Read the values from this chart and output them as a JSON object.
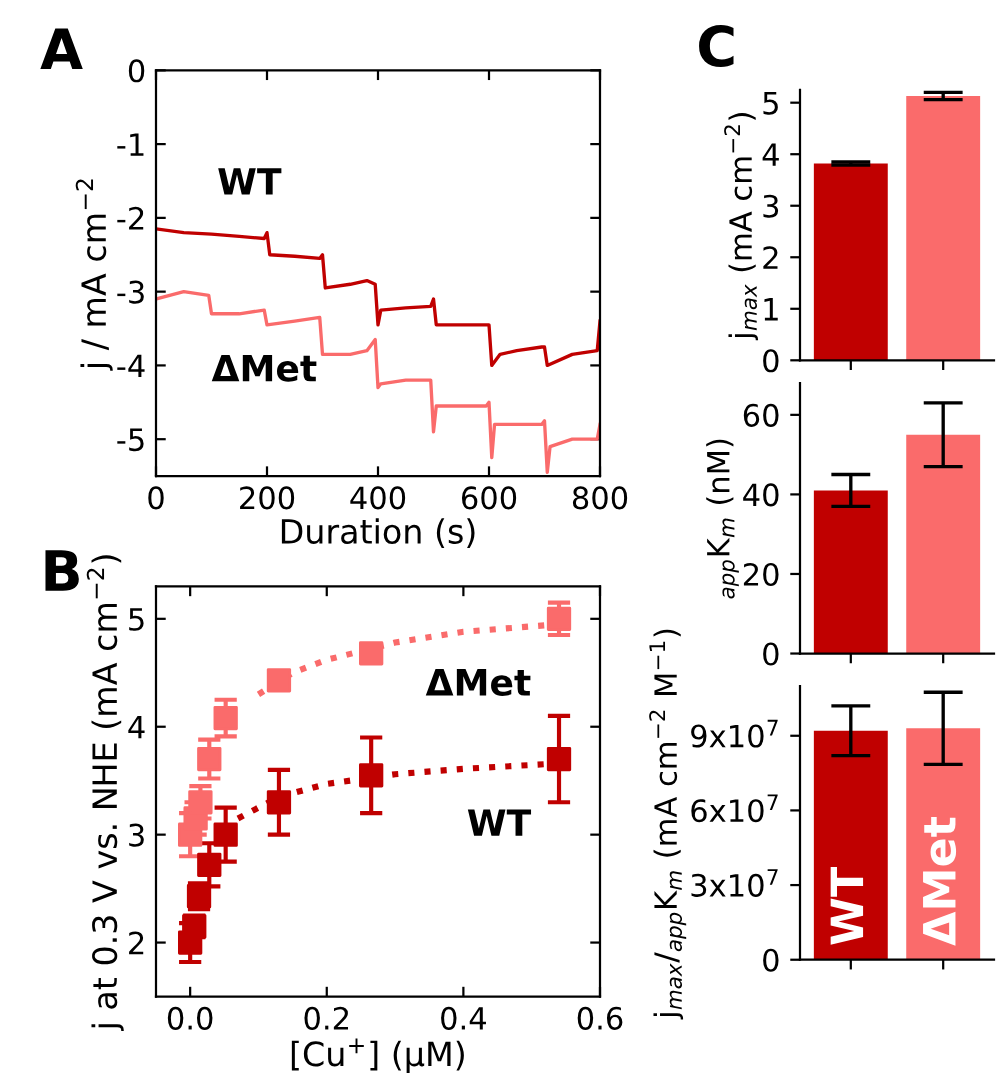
{
  "chart_data": [
    {
      "type": "line",
      "xlabel": "Duration (s)",
      "ylabel": "j / mA cm$^{−2}$",
      "annotations": [
        "A"
      ],
      "xlim": [
        0,
        800
      ],
      "ylim": [
        -5.5,
        0
      ],
      "xticks": [
        0,
        200,
        400,
        600,
        800
      ],
      "yticks": [
        0,
        -1,
        -2,
        -3,
        -4,
        -5
      ],
      "line_style": "solid",
      "series": [
        {
          "name": "WT",
          "color": "#c00000",
          "x": [
            0,
            50,
            100,
            150,
            195,
            200,
            205,
            250,
            295,
            300,
            305,
            350,
            380,
            395,
            400,
            405,
            450,
            495,
            500,
            505,
            550,
            600,
            605,
            620,
            650,
            695,
            700,
            705,
            750,
            795,
            800
          ],
          "values": [
            -2.15,
            -2.2,
            -2.22,
            -2.25,
            -2.28,
            -2.2,
            -2.5,
            -2.52,
            -2.55,
            -2.5,
            -2.95,
            -2.9,
            -2.85,
            -2.9,
            -3.45,
            -3.25,
            -3.22,
            -3.2,
            -3.1,
            -3.45,
            -3.45,
            -3.45,
            -4.0,
            -3.85,
            -3.8,
            -3.75,
            -3.75,
            -4.0,
            -3.85,
            -3.8,
            -3.4
          ]
        },
        {
          "name": "ΔMet",
          "color": "#fa6b6b",
          "x": [
            0,
            50,
            95,
            100,
            150,
            195,
            200,
            250,
            295,
            300,
            350,
            380,
            395,
            400,
            405,
            450,
            495,
            500,
            505,
            550,
            595,
            600,
            605,
            610,
            650,
            695,
            700,
            705,
            710,
            750,
            795,
            800
          ],
          "values": [
            -3.1,
            -3.0,
            -3.05,
            -3.3,
            -3.3,
            -3.25,
            -3.45,
            -3.4,
            -3.35,
            -3.85,
            -3.85,
            -3.8,
            -3.65,
            -4.3,
            -4.25,
            -4.2,
            -4.2,
            -4.9,
            -4.55,
            -4.55,
            -4.55,
            -4.5,
            -5.25,
            -4.8,
            -4.8,
            -4.8,
            -4.75,
            -5.45,
            -5.1,
            -5.0,
            -5.0,
            -4.8
          ]
        }
      ]
    },
    {
      "type": "scatter",
      "xlabel": "[Cu$^{+}$] (μM)",
      "ylabel": "j at 0.3 V vs. NHE (mA cm$^{−2}$)",
      "annotations": [
        "B"
      ],
      "xlim": [
        -0.05,
        0.6
      ],
      "ylim": [
        1.5,
        5.3
      ],
      "xticks": [
        {
          "value": 0,
          "label": "0.0"
        },
        0.2,
        0.4,
        0.6
      ],
      "yticks": [
        2,
        3,
        4,
        5
      ],
      "marker": "square",
      "series": [
        {
          "name": "WT",
          "color": "#c00000",
          "x": [
            0.0,
            0.006,
            0.013,
            0.028,
            0.052,
            0.13,
            0.265,
            0.54
          ],
          "values": [
            2.0,
            2.15,
            2.43,
            2.72,
            3.0,
            3.3,
            3.55,
            3.7
          ],
          "errors": [
            0.18,
            0.1,
            0.12,
            0.2,
            0.25,
            0.3,
            0.35,
            0.4
          ]
        },
        {
          "name": "ΔMet",
          "color": "#fa6b6b",
          "x": [
            0.0,
            0.008,
            0.015,
            0.028,
            0.052,
            0.13,
            0.265,
            0.54
          ],
          "values": [
            3.0,
            3.15,
            3.3,
            3.7,
            4.08,
            4.43,
            4.68,
            5.0
          ],
          "errors": [
            0.2,
            0.15,
            0.15,
            0.18,
            0.17,
            0.08,
            0.08,
            0.15
          ]
        },
        {
          "type": "line",
          "line_style": "dotted",
          "marker": "none",
          "color": "#c00000",
          "x": [
            0.07,
            0.1,
            0.13,
            0.2,
            0.3,
            0.4,
            0.54
          ],
          "values": [
            3.15,
            3.25,
            3.35,
            3.47,
            3.56,
            3.61,
            3.66
          ]
        },
        {
          "type": "line",
          "line_style": "dotted",
          "marker": "none",
          "color": "#fa6b6b",
          "x": [
            0.1,
            0.15,
            0.2,
            0.3,
            0.4,
            0.54
          ],
          "values": [
            4.3,
            4.5,
            4.62,
            4.78,
            4.88,
            4.95
          ]
        }
      ]
    },
    {
      "type": "bar",
      "ylabel": "j$_{max}$ (mA cm$^{−2}$)",
      "annotations": [
        "C"
      ],
      "categories": [
        null,
        null
      ],
      "values": [
        3.82,
        5.13
      ],
      "errors": [
        0.03,
        0.07
      ],
      "colors": [
        "#c00000",
        "#fa6b6b"
      ],
      "ylim": [
        0,
        5.25
      ],
      "yticks": [
        0,
        1,
        2,
        3,
        4,
        5
      ]
    },
    {
      "type": "bar",
      "ylabel": "$_{app}$K$_{m}$ (nM)",
      "categories": [
        null,
        null
      ],
      "values": [
        41,
        55
      ],
      "errors": [
        4,
        8
      ],
      "colors": [
        "#c00000",
        "#fa6b6b"
      ],
      "ylim": [
        0,
        68
      ],
      "yticks": [
        0,
        20,
        40,
        60
      ]
    },
    {
      "type": "bar",
      "ylabel": "j$_{max}$/$_{app}$K$_{m}$ (mA cm$^{−2}$ M$^{−1}$)",
      "categories": [
        "WT",
        "ΔMet"
      ],
      "values": [
        92000000,
        93000000
      ],
      "errors": [
        10000000,
        14500000
      ],
      "colors": [
        "#c00000",
        "#fa6b6b"
      ],
      "ylim": [
        0,
        110000000
      ],
      "yticks": [
        0,
        {
          "value": 30000000,
          "label": "3x10$^{7}$"
        },
        {
          "value": 60000000,
          "label": "6x10$^{7}$"
        },
        {
          "value": 90000000,
          "label": "9x10$^{7}$"
        }
      ]
    }
  ]
}
